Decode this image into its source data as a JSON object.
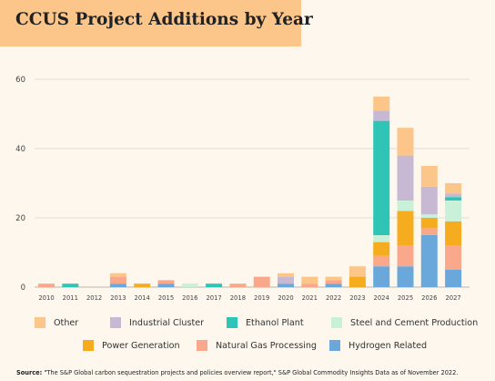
{
  "title": "CCUS Project Additions by Year",
  "source": {
    "prefix": "Source:",
    "text": "\"The S&P Global carbon sequestration projects and policies overview report,\" S&P Global Commodity Insights Data as of November 2022."
  },
  "chart_data": {
    "type": "bar",
    "stacked": true,
    "title": "CCUS Project Additions by Year",
    "xlabel": "",
    "ylabel": "",
    "ylim": [
      0,
      60
    ],
    "yticks": [
      0,
      20,
      40,
      60
    ],
    "grid": true,
    "legend_position": "bottom",
    "categories": [
      "2010",
      "2011",
      "2012",
      "2013",
      "2014",
      "2015",
      "2016",
      "2017",
      "2018",
      "2019",
      "2020",
      "2021",
      "2022",
      "2023",
      "2024",
      "2025",
      "2026",
      "2027"
    ],
    "series": [
      {
        "name": "Hydrogen Related",
        "color": "#6aa8dc",
        "values": [
          0,
          0,
          0,
          1,
          0,
          1,
          0,
          0,
          0,
          0,
          1,
          0,
          1,
          0,
          6,
          6,
          15,
          5
        ]
      },
      {
        "name": "Natural Gas Processing",
        "color": "#f9a88b",
        "values": [
          1,
          0,
          0,
          2,
          0,
          1,
          0,
          0,
          1,
          3,
          0,
          1,
          1,
          0,
          3,
          6,
          2,
          7
        ]
      },
      {
        "name": "Power Generation",
        "color": "#f5ad1f",
        "values": [
          0,
          0,
          0,
          0,
          1,
          0,
          0,
          0,
          0,
          0,
          0,
          0,
          0,
          3,
          4,
          10,
          3,
          7
        ]
      },
      {
        "name": "Steel and Cement Production",
        "color": "#c9f0d9",
        "values": [
          0,
          0,
          0,
          0,
          0,
          0,
          1,
          0,
          0,
          0,
          0,
          0,
          0,
          0,
          2,
          3,
          1,
          6
        ]
      },
      {
        "name": "Ethanol Plant",
        "color": "#2ec4b6",
        "values": [
          0,
          1,
          0,
          0,
          0,
          0,
          0,
          1,
          0,
          0,
          0,
          0,
          0,
          0,
          33,
          0,
          0,
          1
        ]
      },
      {
        "name": "Industrial Cluster",
        "color": "#c7b9d3",
        "values": [
          0,
          0,
          0,
          0,
          0,
          0,
          0,
          0,
          0,
          0,
          2,
          0,
          0,
          0,
          3,
          13,
          8,
          1
        ]
      },
      {
        "name": "Other",
        "color": "#fcc68a",
        "values": [
          0,
          0,
          0,
          1,
          0,
          0,
          0,
          0,
          0,
          0,
          1,
          2,
          1,
          3,
          4,
          8,
          6,
          3
        ]
      }
    ]
  },
  "legend_order": [
    "Other",
    "Industrial Cluster",
    "Ethanol Plant",
    "Steel and Cement Production",
    "Power Generation",
    "Natural Gas Processing",
    "Hydrogen Related"
  ]
}
